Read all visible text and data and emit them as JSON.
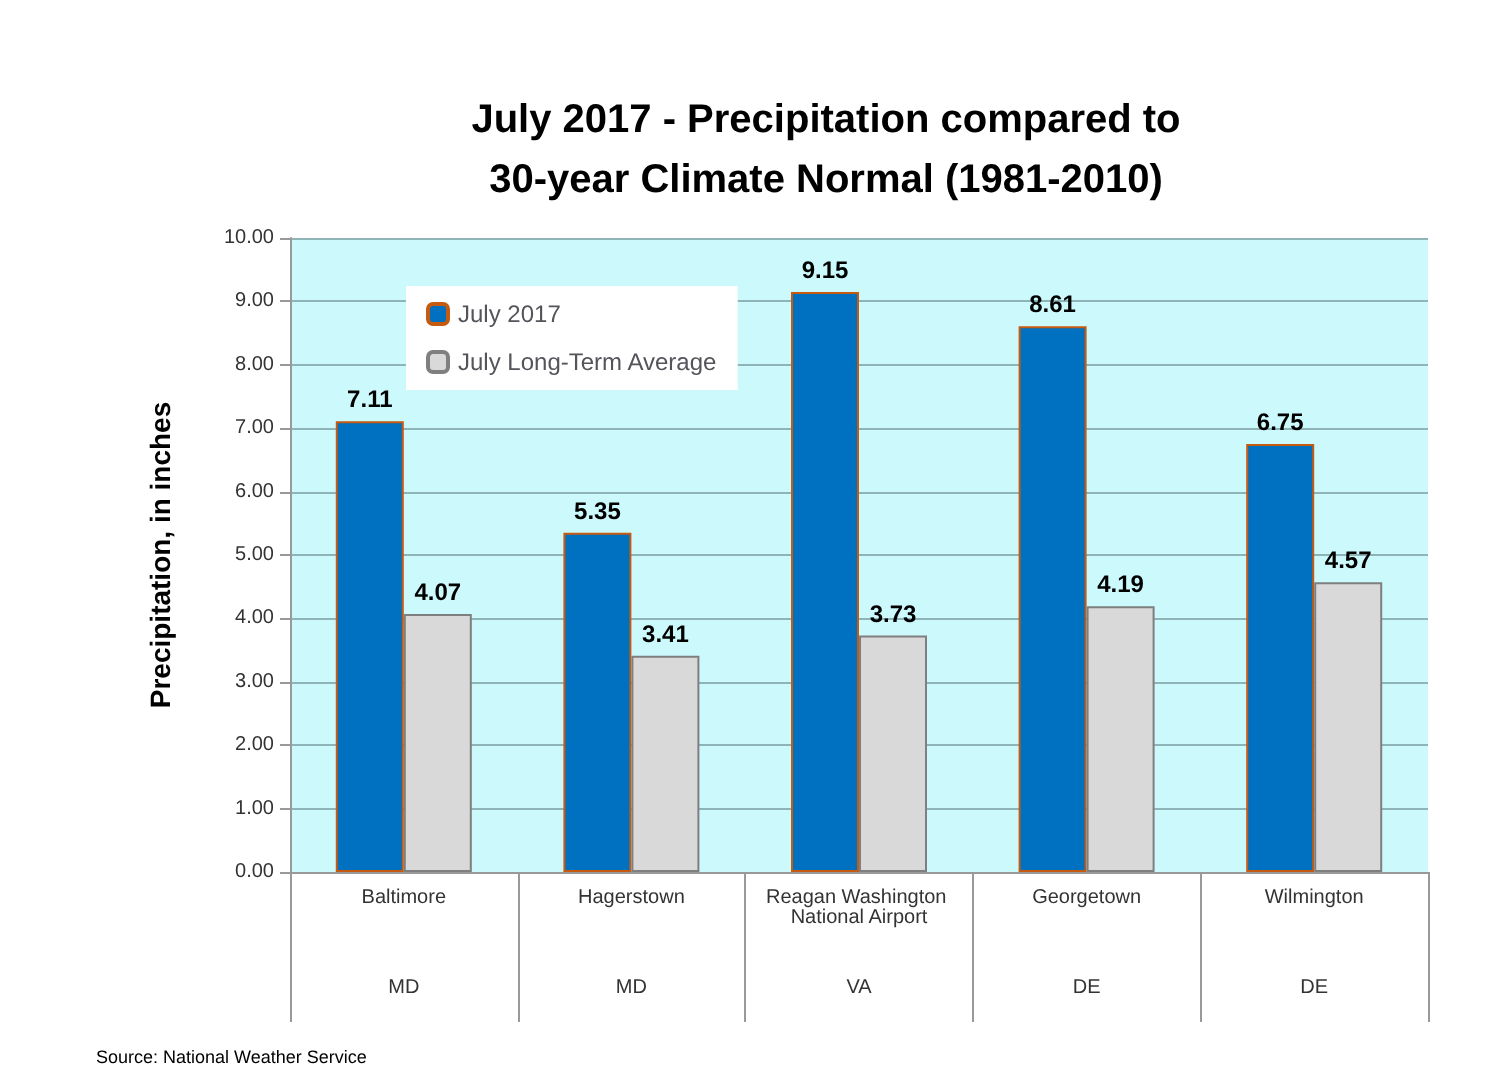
{
  "chart_data": {
    "type": "bar",
    "title": "July 2017 - Precipitation compared to\n30-year Climate Normal (1981-2010)",
    "ylabel": "Precipitation, in inches",
    "categories": [
      "Baltimore",
      "Hagerstown",
      "Reagan Washington National Airport",
      "Georgetown",
      "Wilmington"
    ],
    "series": [
      {
        "name": "July 2017",
        "color": "#0070c0",
        "values": [
          7.11,
          5.35,
          9.15,
          8.61,
          6.75
        ]
      },
      {
        "name": "July Long-Term Average",
        "color": "#d9d9d9",
        "values": [
          4.07,
          3.41,
          3.73,
          4.19,
          4.57
        ]
      }
    ],
    "ylim": [
      0,
      10
    ],
    "yticks": [
      {
        "value": 0,
        "label": "0.00"
      },
      {
        "value": 1,
        "label": "1.00"
      },
      {
        "value": 2,
        "label": "2.00"
      },
      {
        "value": 3,
        "label": "3.00"
      },
      {
        "value": 4,
        "label": "4.00"
      },
      {
        "value": 5,
        "label": "5.00"
      },
      {
        "value": 6,
        "label": "6.00"
      },
      {
        "value": 7,
        "label": "7.00"
      },
      {
        "value": 8,
        "label": "8.00"
      },
      {
        "value": 9,
        "label": "9.00"
      },
      {
        "value": 10,
        "label": "10.00"
      }
    ],
    "grid": "y",
    "legend": "top left",
    "data_labels": true,
    "annotations": [
      "MD",
      "MD",
      "VA",
      "DE",
      "DE",
      "Source: National Weather Service"
    ]
  }
}
